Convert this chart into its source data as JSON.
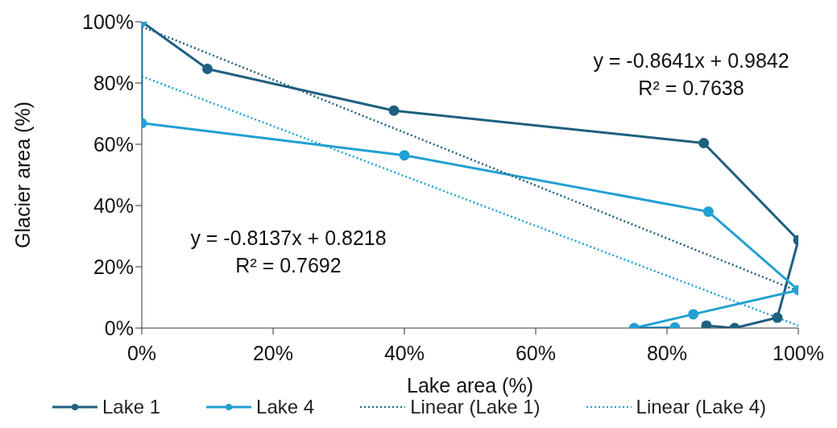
{
  "chart_data": {
    "type": "line",
    "xlabel": "Lake area (%)",
    "ylabel": "Glacier area (%)",
    "xlim": [
      0,
      100
    ],
    "ylim": [
      0,
      100
    ],
    "xticks": [
      {
        "value": 0,
        "label": "0%"
      },
      {
        "value": 20,
        "label": "20%"
      },
      {
        "value": 40,
        "label": "40%"
      },
      {
        "value": 60,
        "label": "60%"
      },
      {
        "value": 80,
        "label": "80%"
      },
      {
        "value": 100,
        "label": "100%"
      }
    ],
    "yticks": [
      {
        "value": 0,
        "label": "0%"
      },
      {
        "value": 20,
        "label": "20%"
      },
      {
        "value": 40,
        "label": "40%"
      },
      {
        "value": 60,
        "label": "60%"
      },
      {
        "value": 80,
        "label": "80%"
      },
      {
        "value": 100,
        "label": "100%"
      }
    ],
    "grid": false,
    "legend": "bottom",
    "series": [
      {
        "name": "Lake 1",
        "color": "#1f5f80",
        "marker": "circle",
        "line_style": "solid",
        "x": [
          0,
          10,
          38.4,
          85.6,
          100,
          96.8,
          90.3,
          86
        ],
        "values": [
          100,
          84.6,
          71,
          60.4,
          28.7,
          3.4,
          0,
          0.8
        ]
      },
      {
        "name": "Lake 4",
        "color": "#21a0d2",
        "marker": "circle",
        "line_style": "solid",
        "x": [
          0,
          0,
          40,
          86.3,
          100,
          84,
          75,
          81.2
        ],
        "values": [
          100,
          66.9,
          56.4,
          38,
          12.4,
          4.5,
          0,
          0.2
        ]
      },
      {
        "name": "Linear (Lake 1)",
        "color": "#1f5f80",
        "marker": "none",
        "line_style": "dotted",
        "x": [
          0,
          100
        ],
        "values": [
          98.4,
          12
        ]
      },
      {
        "name": "Linear (Lake 4)",
        "color": "#21a0d2",
        "marker": "none",
        "line_style": "dotted",
        "x": [
          0,
          100
        ],
        "values": [
          82.2,
          0.8
        ]
      }
    ],
    "annotations": [
      "y = -0.8641x + 0.9842\nR² = 0.7638",
      "y = -0.8137x + 0.8218\nR² = 0.7692"
    ]
  }
}
